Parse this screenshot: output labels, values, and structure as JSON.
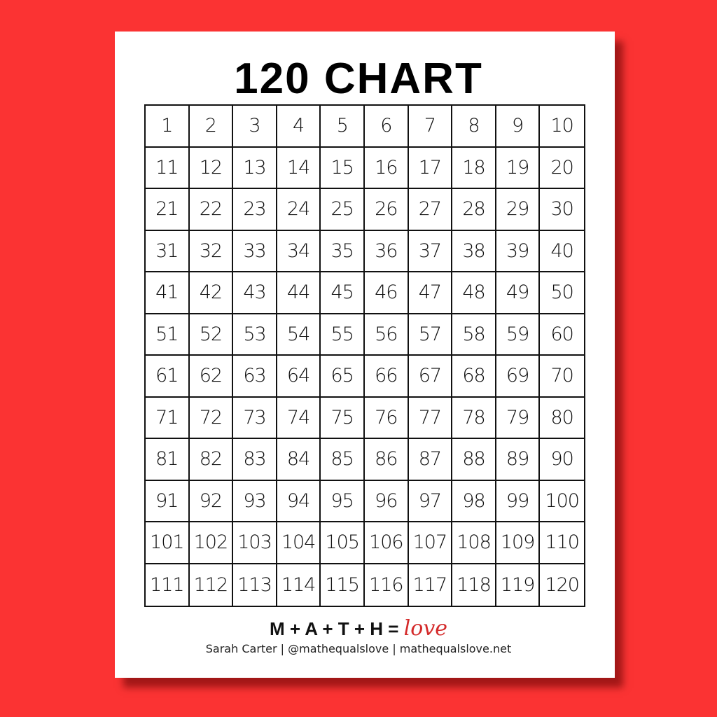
{
  "title": "120 CHART",
  "numbers": [
    1,
    2,
    3,
    4,
    5,
    6,
    7,
    8,
    9,
    10,
    11,
    12,
    13,
    14,
    15,
    16,
    17,
    18,
    19,
    20,
    21,
    22,
    23,
    24,
    25,
    26,
    27,
    28,
    29,
    30,
    31,
    32,
    33,
    34,
    35,
    36,
    37,
    38,
    39,
    40,
    41,
    42,
    43,
    44,
    45,
    46,
    47,
    48,
    49,
    50,
    51,
    52,
    53,
    54,
    55,
    56,
    57,
    58,
    59,
    60,
    61,
    62,
    63,
    64,
    65,
    66,
    67,
    68,
    69,
    70,
    71,
    72,
    73,
    74,
    75,
    76,
    77,
    78,
    79,
    80,
    81,
    82,
    83,
    84,
    85,
    86,
    87,
    88,
    89,
    90,
    91,
    92,
    93,
    94,
    95,
    96,
    97,
    98,
    99,
    100,
    101,
    102,
    103,
    104,
    105,
    106,
    107,
    108,
    109,
    110,
    111,
    112,
    113,
    114,
    115,
    116,
    117,
    118,
    119,
    120
  ],
  "footer": {
    "motto": "M + A + T + H =",
    "love": "love",
    "credit": "Sarah Carter | @mathequalslove | mathequalslove.net"
  },
  "colors": {
    "background": "#fb3333",
    "love": "#d42a2a"
  }
}
